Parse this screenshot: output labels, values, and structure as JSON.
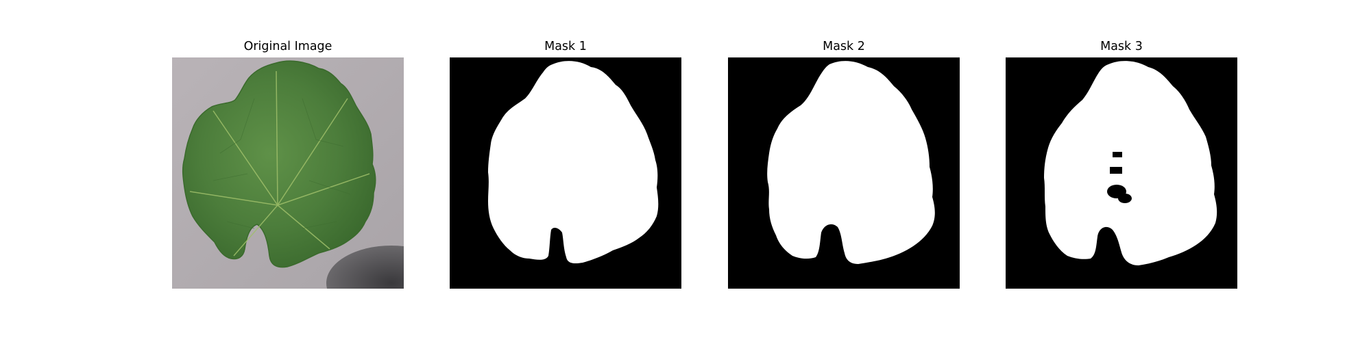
{
  "figure": {
    "panels": [
      {
        "title": "Original Image",
        "kind": "photo"
      },
      {
        "title": "Mask 1",
        "kind": "mask"
      },
      {
        "title": "Mask 2",
        "kind": "mask"
      },
      {
        "title": "Mask 3",
        "kind": "mask"
      }
    ],
    "colors": {
      "background": "#ffffff",
      "mask_background": "#000000",
      "mask_foreground": "#ffffff",
      "leaf_green": "#4e7f3d",
      "ground_gray": "#b2adb1"
    }
  }
}
